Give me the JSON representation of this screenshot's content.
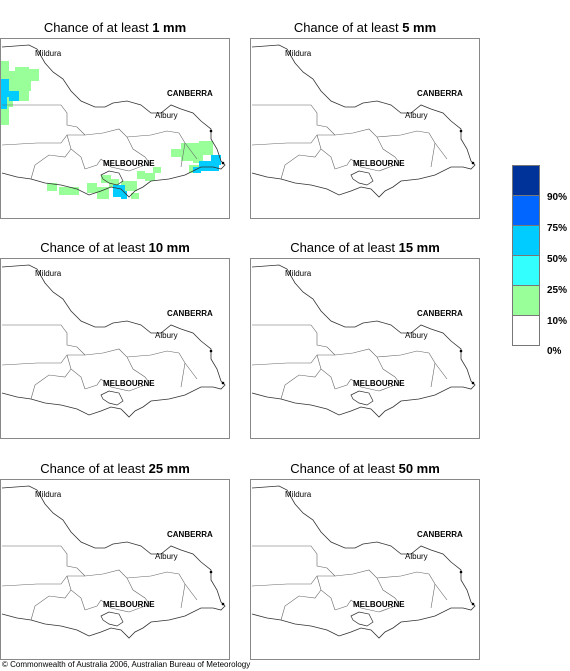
{
  "panels": [
    {
      "title_prefix": "Chance of at least ",
      "title_amount": "1 mm",
      "shading": true
    },
    {
      "title_prefix": "Chance of at least ",
      "title_amount": "5 mm",
      "shading": false
    },
    {
      "title_prefix": "Chance of at least ",
      "title_amount": "10 mm",
      "shading": false
    },
    {
      "title_prefix": "Chance of at least ",
      "title_amount": "15 mm",
      "shading": false
    },
    {
      "title_prefix": "Chance of at least ",
      "title_amount": "25 mm",
      "shading": false
    },
    {
      "title_prefix": "Chance of at least ",
      "title_amount": "50 mm",
      "shading": false
    }
  ],
  "map_labels": {
    "mildura": "Mildura",
    "canberra": "CANBERRA",
    "albury": "Albury",
    "melbourne": "MELBOURNE"
  },
  "legend": {
    "colors": [
      "#003399",
      "#0066ff",
      "#00ccff",
      "#33ffff",
      "#99ff99",
      "#ffffff"
    ],
    "ticks": [
      "90%",
      "75%",
      "50%",
      "25%",
      "10%",
      "0%"
    ]
  },
  "footer": "© Commonwealth of Australia 2006, Australian Bureau of Meteorology"
}
